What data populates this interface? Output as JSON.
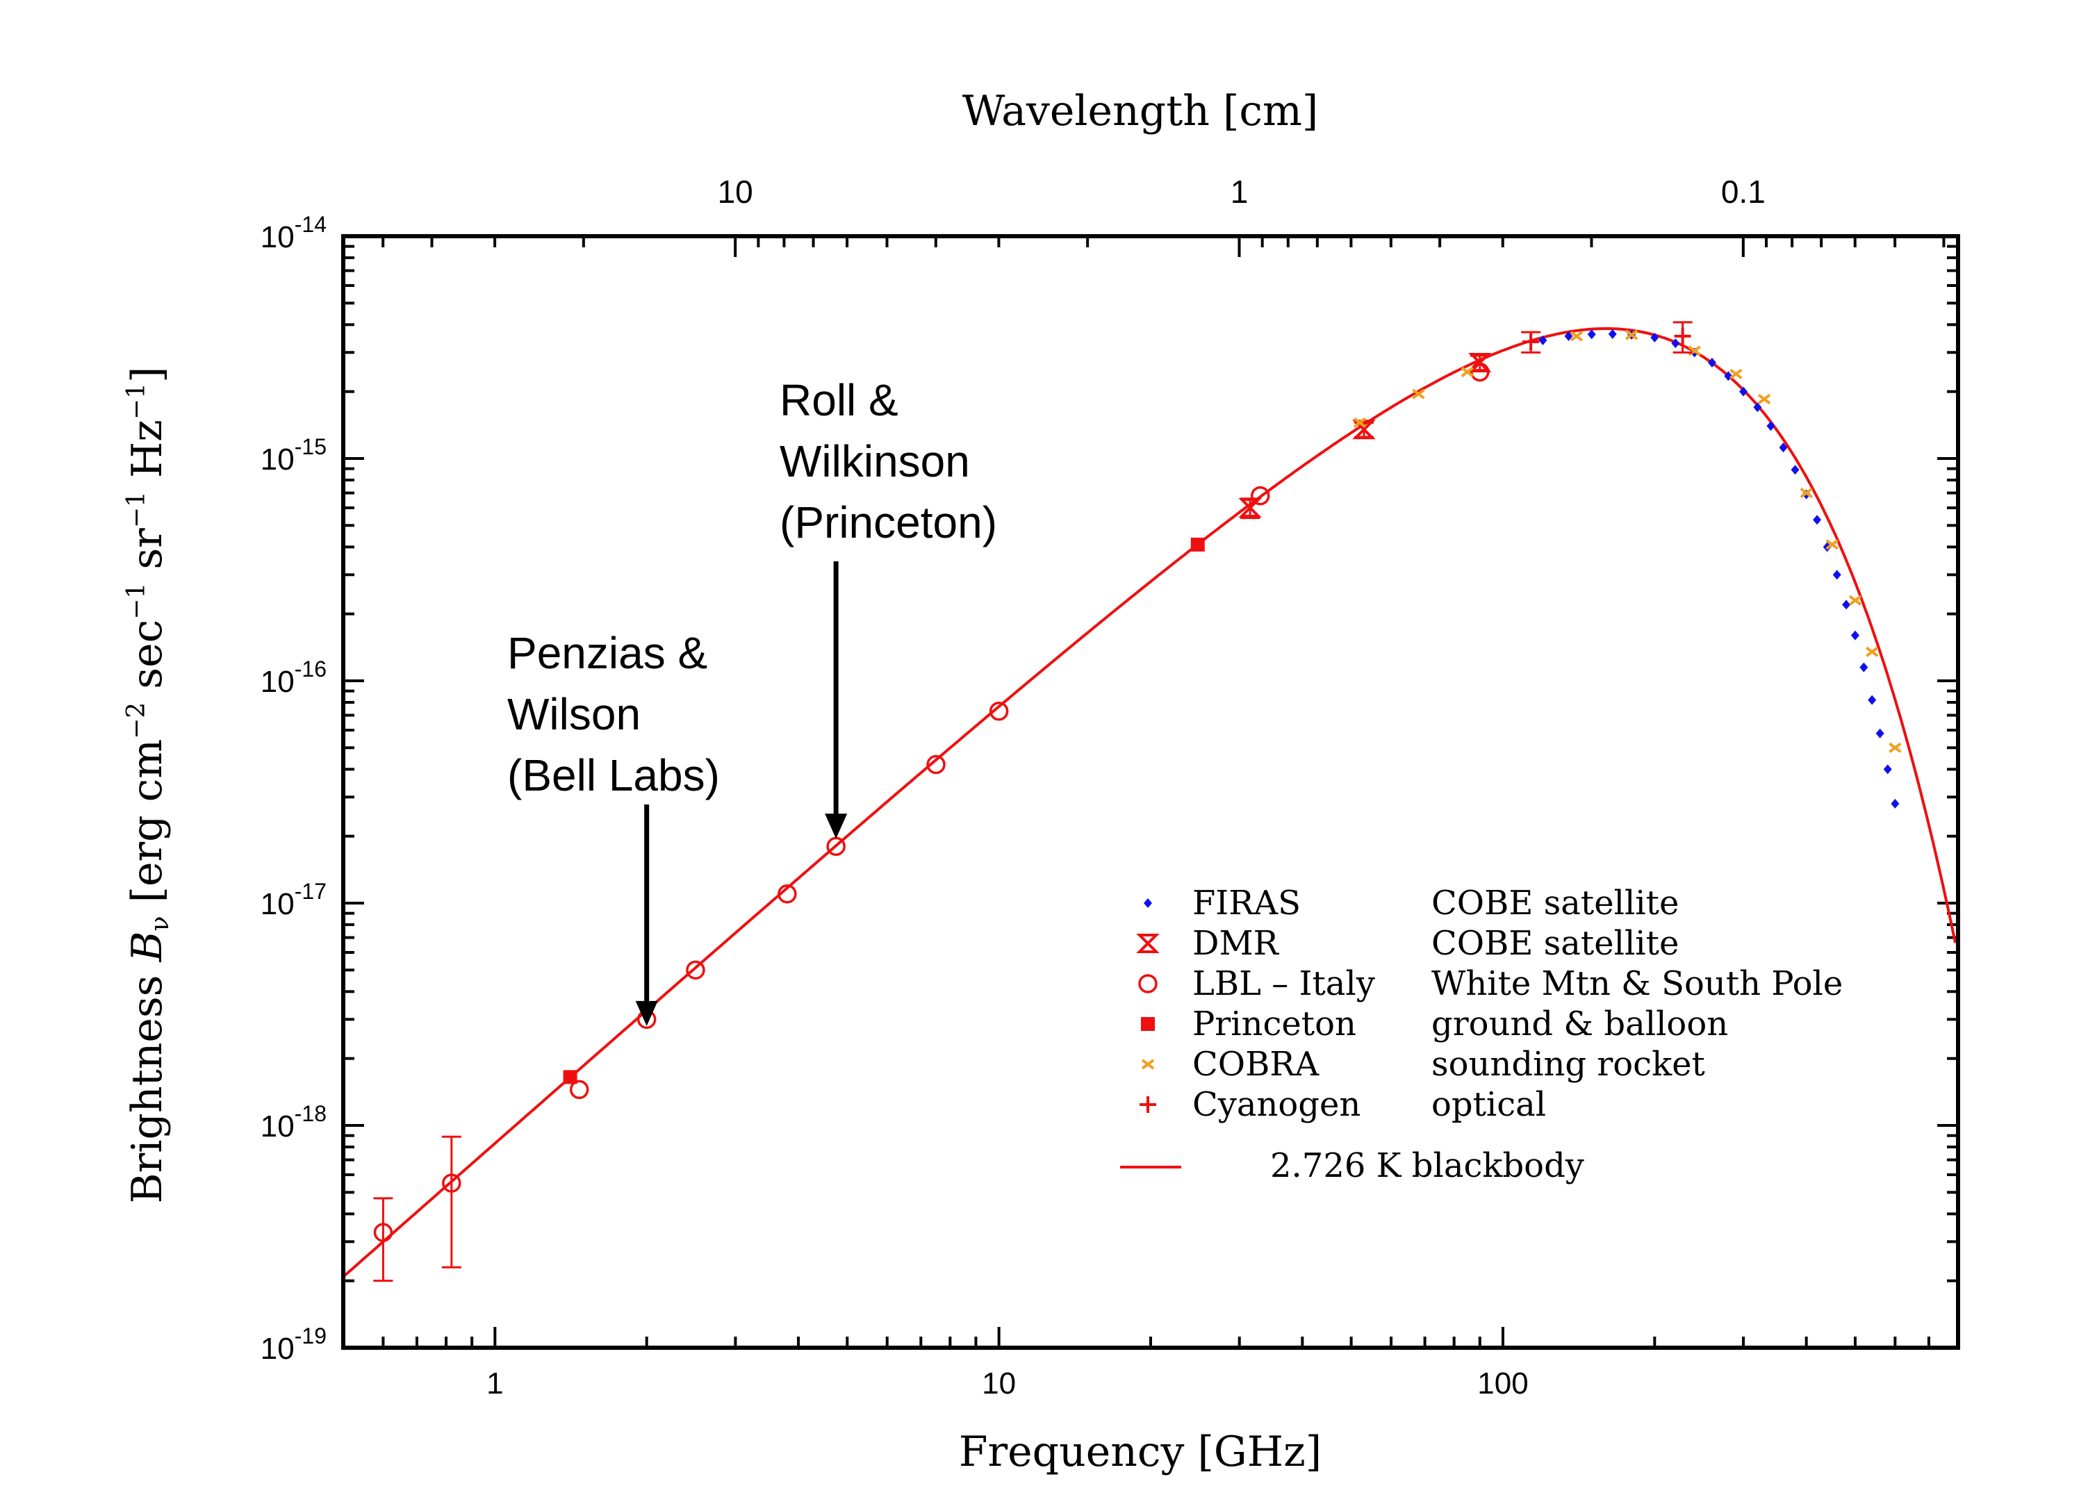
{
  "chart_data": {
    "type": "scatter",
    "xlabel": "Frequency [GHz]",
    "x2label": "Wavelength [cm]",
    "ylabel": "Brightness Bν [erg cm⁻² sec⁻¹ sr⁻¹ Hz⁻¹]",
    "ylabel_parts": {
      "prefix": "Brightness ",
      "symbol": "B",
      "symbol_sub": "ν",
      "bracket_open": " [erg cm",
      "exp1": "−2",
      "unit2": " sec",
      "exp2": "−1",
      "unit3": " sr",
      "exp3": "−1",
      "unit4": " Hz",
      "exp4": "−1",
      "bracket_close": "]"
    },
    "xscale": "log",
    "yscale": "log",
    "xlim": [
      0.5,
      800
    ],
    "ylim": [
      1e-19,
      1e-14
    ],
    "x_ticks": [
      {
        "value": 1,
        "label": "1"
      },
      {
        "value": 10,
        "label": "10"
      },
      {
        "value": 100,
        "label": "100"
      }
    ],
    "x2_ticks": [
      {
        "value": 10,
        "label": "10"
      },
      {
        "value": 1,
        "label": "1"
      },
      {
        "value": 0.1,
        "label": "0.1"
      }
    ],
    "y_ticks": [
      {
        "value": 1e-14,
        "base": "10",
        "exp": "-14"
      },
      {
        "value": 1e-15,
        "base": "10",
        "exp": "-15"
      },
      {
        "value": 1e-16,
        "base": "10",
        "exp": "-16"
      },
      {
        "value": 1e-17,
        "base": "10",
        "exp": "-17"
      },
      {
        "value": 1e-18,
        "base": "10",
        "exp": "-18"
      },
      {
        "value": 1e-19,
        "base": "10",
        "exp": "-19"
      }
    ],
    "blackbody_temperature_K": 2.726,
    "legend": [
      {
        "instrument": "FIRAS",
        "source": "COBE satellite",
        "marker": "diamond",
        "color": "#1010ee"
      },
      {
        "instrument": "DMR",
        "source": "COBE satellite",
        "marker": "hourglass",
        "color": "#ee1010"
      },
      {
        "instrument": "LBL – Italy",
        "source": "White Mtn & South Pole",
        "marker": "open-circle",
        "color": "#ee1010"
      },
      {
        "instrument": "Princeton",
        "source": "ground & balloon",
        "marker": "filled-square",
        "color": "#ee1010"
      },
      {
        "instrument": "COBRA",
        "source": "sounding rocket",
        "marker": "small-cross",
        "color": "#f0a020"
      },
      {
        "instrument": "Cyanogen",
        "source": "optical",
        "marker": "plus",
        "color": "#ee1010"
      },
      {
        "instrument": "",
        "source": "2.726 K blackbody",
        "marker": "line",
        "color": "#ee1010"
      }
    ],
    "legend_position": "lower-right",
    "series": [
      {
        "name": "FIRAS",
        "marker": "diamond",
        "color": "#1010ee",
        "x": [
          120,
          135,
          150,
          165,
          180,
          200,
          220,
          240,
          260,
          280,
          300,
          320,
          340,
          360,
          380,
          400,
          420,
          440,
          460,
          480,
          500,
          520,
          540,
          560,
          580,
          600
        ],
        "y": [
          3.4e-15,
          3.55e-15,
          3.62e-15,
          3.63e-15,
          3.6e-15,
          3.5e-15,
          3.3e-15,
          3e-15,
          2.7e-15,
          2.35e-15,
          2e-15,
          1.7e-15,
          1.4e-15,
          1.12e-15,
          8.9e-16,
          6.9e-16,
          5.3e-16,
          4e-16,
          3e-16,
          2.2e-16,
          1.6e-16,
          1.15e-16,
          8.2e-17,
          5.8e-17,
          4e-17,
          2.8e-17
        ]
      },
      {
        "name": "DMR",
        "marker": "hourglass",
        "color": "#ee1010",
        "x": [
          31.5,
          53,
          90
        ],
        "y": [
          6e-16,
          1.35e-15,
          2.7e-15
        ],
        "yerr": [
          6e-17,
          1e-16,
          2e-16
        ]
      },
      {
        "name": "LBL – Italy",
        "marker": "open-circle",
        "color": "#ee1010",
        "x": [
          0.6,
          0.82,
          1.47,
          2.0,
          2.5,
          3.8,
          4.75,
          7.5,
          10,
          33,
          90
        ],
        "y": [
          3.3e-19,
          5.5e-19,
          1.45e-18,
          3e-18,
          5e-18,
          1.1e-17,
          1.8e-17,
          4.2e-17,
          7.3e-17,
          6.8e-16,
          2.45e-15
        ],
        "yerr_low": [
          2e-19,
          2.3e-19,
          null,
          null,
          null,
          null,
          null,
          null,
          null,
          null,
          null
        ],
        "yerr_high": [
          4.7e-19,
          8.9e-19,
          null,
          null,
          null,
          null,
          null,
          null,
          null,
          null,
          null
        ]
      },
      {
        "name": "Princeton",
        "marker": "filled-square",
        "color": "#ee1010",
        "x": [
          1.41,
          24.8
        ],
        "y": [
          1.65e-18,
          4.1e-16
        ]
      },
      {
        "name": "COBRA",
        "marker": "small-cross",
        "color": "#f0a020",
        "x": [
          52,
          68,
          85,
          140,
          180,
          240,
          290,
          330,
          400,
          450,
          500,
          540,
          600
        ],
        "y": [
          1.45e-15,
          1.95e-15,
          2.45e-15,
          3.55e-15,
          3.6e-15,
          3.05e-15,
          2.4e-15,
          1.85e-15,
          7e-16,
          4.1e-16,
          2.3e-16,
          1.35e-16,
          5e-17
        ]
      },
      {
        "name": "Cyanogen",
        "marker": "plus",
        "color": "#ee1010",
        "x": [
          113.6,
          227.3
        ],
        "y": [
          3.35e-15,
          3.55e-15
        ],
        "yerr": [
          3.5e-16,
          5.5e-16
        ]
      }
    ],
    "annotations": [
      {
        "lines": [
          "Penzias &",
          "Wilson",
          "(Bell Labs)"
        ],
        "x": 2.0,
        "y_arrow_tip": 2.8e-18
      },
      {
        "lines": [
          "Roll &",
          "Wilkinson",
          "(Princeton)"
        ],
        "x": 4.75,
        "y_arrow_tip": 1.95e-17
      }
    ],
    "grid": false
  }
}
